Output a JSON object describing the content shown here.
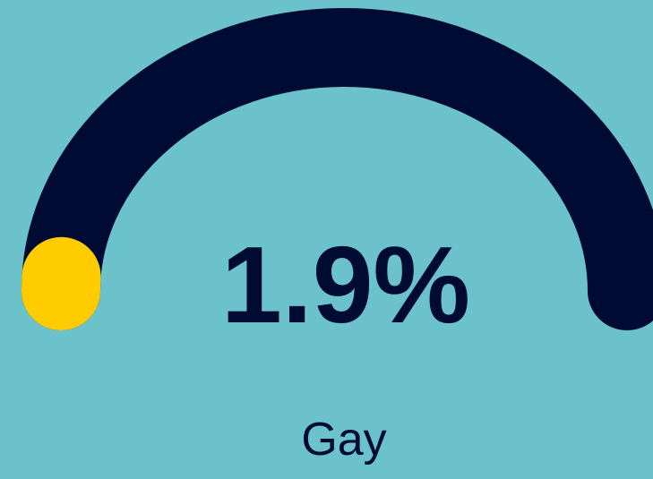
{
  "chart_data": {
    "type": "gauge",
    "value": 1.9,
    "value_label": "1.9%",
    "label": "Gay",
    "range": [
      0,
      100
    ],
    "track_color": "#000b33",
    "fill_color": "#ffcc00",
    "background": "#6bc2cb"
  }
}
